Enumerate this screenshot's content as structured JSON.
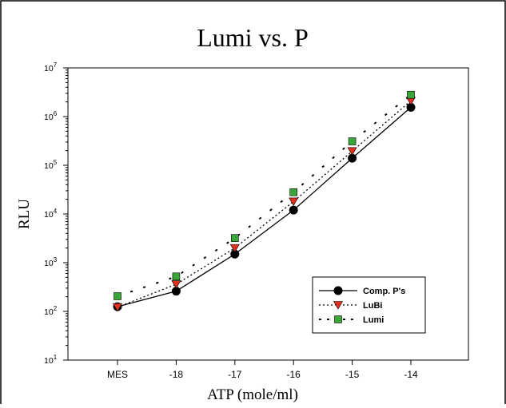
{
  "chart_data": {
    "type": "line",
    "title": "Lumi vs. P",
    "xlabel": "ATP (mole/ml)",
    "ylabel": "RLU",
    "categories": [
      "MES",
      "-18",
      "-17",
      "-16",
      "-15",
      "-14"
    ],
    "y_scale": "log",
    "ylim": [
      10,
      10000000
    ],
    "y_ticks": [
      {
        "value": 10,
        "base": "10",
        "exp": "1"
      },
      {
        "value": 100,
        "base": "10",
        "exp": "2"
      },
      {
        "value": 1000,
        "base": "10",
        "exp": "3"
      },
      {
        "value": 10000,
        "base": "10",
        "exp": "4"
      },
      {
        "value": 100000,
        "base": "10",
        "exp": "5"
      },
      {
        "value": 1000000,
        "base": "10",
        "exp": "6"
      },
      {
        "value": 10000000,
        "base": "10",
        "exp": "7"
      }
    ],
    "grid": false,
    "legend_position": "lower-right",
    "series": [
      {
        "name": "Comp. P's",
        "values": [
          125,
          260,
          1500,
          12000,
          140000,
          1550000
        ],
        "marker": "circle",
        "line": "solid",
        "color": "#000000"
      },
      {
        "name": "LuBi",
        "values": [
          122,
          360,
          2000,
          18000,
          195000,
          2100000
        ],
        "marker": "triangle-down",
        "line": "dotted",
        "color": "#e03020"
      },
      {
        "name": "Lumi",
        "values": [
          205,
          520,
          3200,
          28000,
          310000,
          2800000
        ],
        "marker": "square",
        "line": "dashed",
        "color": "#3aa63a"
      }
    ]
  }
}
